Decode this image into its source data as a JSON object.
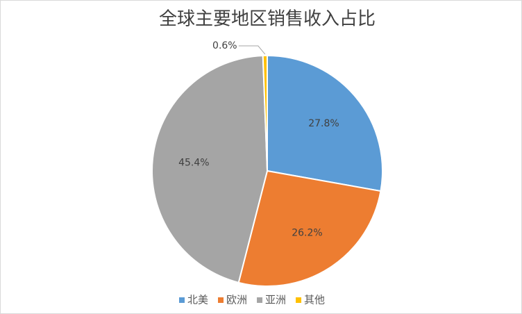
{
  "chart_data": {
    "type": "pie",
    "title": "全球主要地区销售收入占比",
    "categories": [
      "北美",
      "欧洲",
      "亚洲",
      "其他"
    ],
    "values": [
      27.8,
      26.2,
      45.4,
      0.6
    ],
    "value_labels": [
      "27.8%",
      "26.2%",
      "45.4%",
      "0.6%"
    ],
    "colors": [
      "#5b9bd5",
      "#ed7d31",
      "#a5a5a5",
      "#ffc000"
    ],
    "legend": "bottom"
  }
}
